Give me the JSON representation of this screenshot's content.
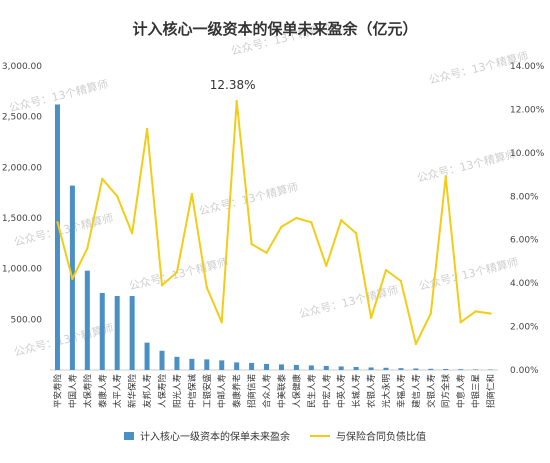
{
  "watermark": "公众号：13个精算师",
  "chart_data": {
    "type": "bar-line-combo",
    "title": "计入核心一级资本的保单未来盈余（亿元）",
    "categories": [
      "平安寿险",
      "中国人寿",
      "太保寿险",
      "泰康人寿",
      "太平人寿",
      "新华保险",
      "友邦人寿",
      "人保寿险",
      "阳光人寿",
      "中信保诚",
      "工银安盛",
      "中邮人寿",
      "泰康养老",
      "招商信诺",
      "合众人寿",
      "中美联泰",
      "人保健康",
      "民生人寿",
      "中宏人寿",
      "中英人寿",
      "长城人寿",
      "农银人寿",
      "光大永明",
      "幸福人寿",
      "建信人寿",
      "交银人寿",
      "同方全球",
      "中意人寿",
      "中银三星",
      "招商仁和"
    ],
    "series": [
      {
        "name": "计入核心一级资本的保单未来盈余",
        "type": "bar",
        "axis": "left",
        "color": "#4a90c4",
        "values": [
          2620,
          1820,
          980,
          760,
          730,
          730,
          270,
          190,
          130,
          110,
          105,
          95,
          75,
          70,
          60,
          55,
          50,
          45,
          40,
          35,
          30,
          25,
          22,
          18,
          15,
          12,
          10,
          8,
          6,
          5
        ]
      },
      {
        "name": "与保险合同负债比值",
        "type": "line",
        "axis": "right",
        "color": "#f2cd17",
        "values": [
          6.8,
          4.2,
          5.6,
          8.8,
          8.0,
          6.3,
          11.1,
          3.9,
          4.5,
          8.1,
          3.8,
          2.2,
          12.38,
          5.8,
          5.4,
          6.6,
          7.0,
          6.8,
          4.8,
          6.9,
          6.3,
          2.4,
          4.6,
          4.1,
          1.2,
          2.6,
          8.9,
          2.2,
          2.7,
          2.6
        ]
      }
    ],
    "y_left": {
      "ylim": [
        0,
        3000
      ],
      "ticks": [
        500,
        1000,
        1500,
        2000,
        2500,
        3000
      ],
      "tick_labels": [
        "500.00",
        "1,000.00",
        "1,500.00",
        "2,000.00",
        "2,500.00",
        "3,000.00"
      ]
    },
    "y_right": {
      "ylim": [
        0,
        14
      ],
      "ticks": [
        0,
        2,
        4,
        6,
        8,
        10,
        12,
        14
      ],
      "tick_labels": [
        "0.00%",
        "2.00%",
        "4.00%",
        "6.00%",
        "8.00%",
        "10.00%",
        "12.00%",
        "14.00%"
      ]
    },
    "annotations": [
      {
        "category_index": 12,
        "text": "12.38%"
      }
    ],
    "legend_position": "bottom",
    "grid": false
  }
}
